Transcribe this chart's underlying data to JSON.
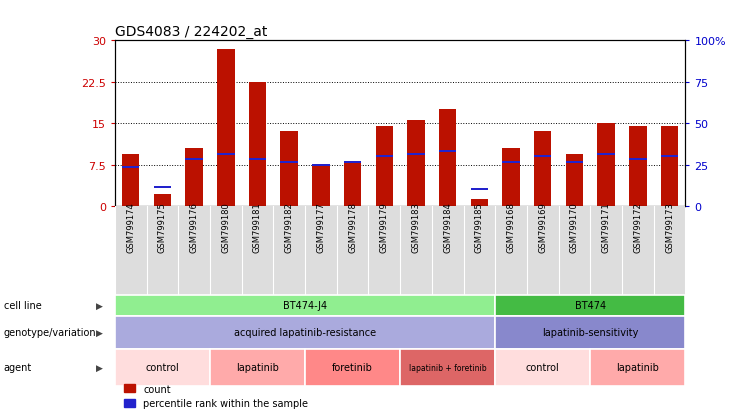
{
  "title": "GDS4083 / 224202_at",
  "samples": [
    "GSM799174",
    "GSM799175",
    "GSM799176",
    "GSM799180",
    "GSM799181",
    "GSM799182",
    "GSM799177",
    "GSM799178",
    "GSM799179",
    "GSM799183",
    "GSM799184",
    "GSM799185",
    "GSM799168",
    "GSM799169",
    "GSM799170",
    "GSM799171",
    "GSM799172",
    "GSM799173"
  ],
  "counts": [
    9.5,
    2.2,
    10.5,
    28.5,
    22.5,
    13.5,
    7.5,
    8.0,
    14.5,
    15.5,
    17.5,
    1.2,
    10.5,
    13.5,
    9.5,
    15.0,
    14.5,
    14.5
  ],
  "percentile_ranks": [
    7.0,
    3.5,
    8.5,
    9.5,
    8.5,
    8.0,
    7.5,
    8.0,
    9.0,
    9.5,
    10.0,
    3.0,
    8.0,
    9.0,
    8.0,
    9.5,
    8.5,
    9.0
  ],
  "bar_color": "#bb1100",
  "blue_color": "#2222cc",
  "ylim_left": [
    0,
    30
  ],
  "ylim_right": [
    0,
    100
  ],
  "yticks_left": [
    0,
    7.5,
    15,
    22.5,
    30
  ],
  "yticks_right": [
    0,
    25,
    50,
    75,
    100
  ],
  "ytick_labels_left": [
    "0",
    "7.5",
    "15",
    "22.5",
    "30"
  ],
  "ytick_labels_right": [
    "0",
    "25",
    "50",
    "75",
    "100%"
  ],
  "cell_line_groups": [
    {
      "label": "BT474-J4",
      "start": 0,
      "end": 12,
      "color": "#90ee90"
    },
    {
      "label": "BT474",
      "start": 12,
      "end": 18,
      "color": "#44bb44"
    }
  ],
  "genotype_groups": [
    {
      "label": "acquired lapatinib-resistance",
      "start": 0,
      "end": 12,
      "color": "#aaaadd"
    },
    {
      "label": "lapatinib-sensitivity",
      "start": 12,
      "end": 18,
      "color": "#8888cc"
    }
  ],
  "agent_groups": [
    {
      "label": "control",
      "start": 0,
      "end": 3,
      "color": "#ffdddd"
    },
    {
      "label": "lapatinib",
      "start": 3,
      "end": 6,
      "color": "#ffaaaa"
    },
    {
      "label": "foretinib",
      "start": 6,
      "end": 9,
      "color": "#ff8888"
    },
    {
      "label": "lapatinib + foretinib",
      "start": 9,
      "end": 12,
      "color": "#dd6666"
    },
    {
      "label": "control",
      "start": 12,
      "end": 15,
      "color": "#ffdddd"
    },
    {
      "label": "lapatinib",
      "start": 15,
      "end": 18,
      "color": "#ffaaaa"
    }
  ],
  "left_yaxis_color": "#cc0000",
  "right_yaxis_color": "#0000cc",
  "bar_width": 0.55,
  "xtick_bg_color": "#dddddd",
  "chart_bg_color": "#ffffff",
  "grid_color": "#000000"
}
